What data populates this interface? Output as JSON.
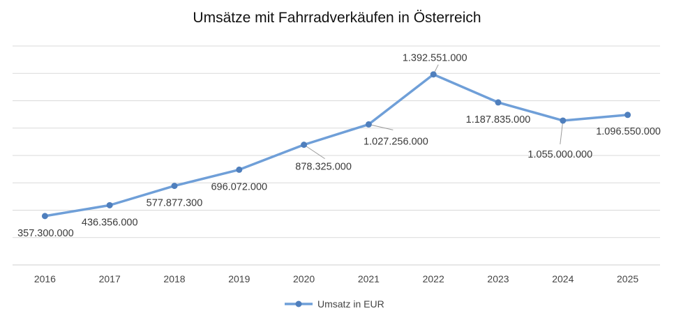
{
  "chart_data": {
    "type": "line",
    "title": "Umsätze mit Fahrradverkäufen in Österreich",
    "xlabel": "",
    "ylabel": "",
    "categories": [
      "2016",
      "2017",
      "2018",
      "2019",
      "2020",
      "2021",
      "2022",
      "2023",
      "2024",
      "2025"
    ],
    "series": [
      {
        "name": "Umsatz in EUR",
        "values": [
          357300000,
          436356000,
          577877300,
          696072000,
          878325000,
          1027256000,
          1392551000,
          1187835000,
          1055000000,
          1096550000
        ],
        "data_labels": [
          "357.300.000",
          "436.356.000",
          "577.877.300",
          "696.072.000",
          "878.325.000",
          "1.027.256.000",
          "1.392.551.000",
          "1.187.835.000",
          "1.055.000.000",
          "1.096.550.000"
        ],
        "color": "#6f9fd8",
        "marker_color": "#4f7fbd"
      }
    ],
    "ylim": [
      0,
      1600000000
    ],
    "grid": true,
    "y_tick_labels_visible": false,
    "legend_position": "bottom"
  }
}
